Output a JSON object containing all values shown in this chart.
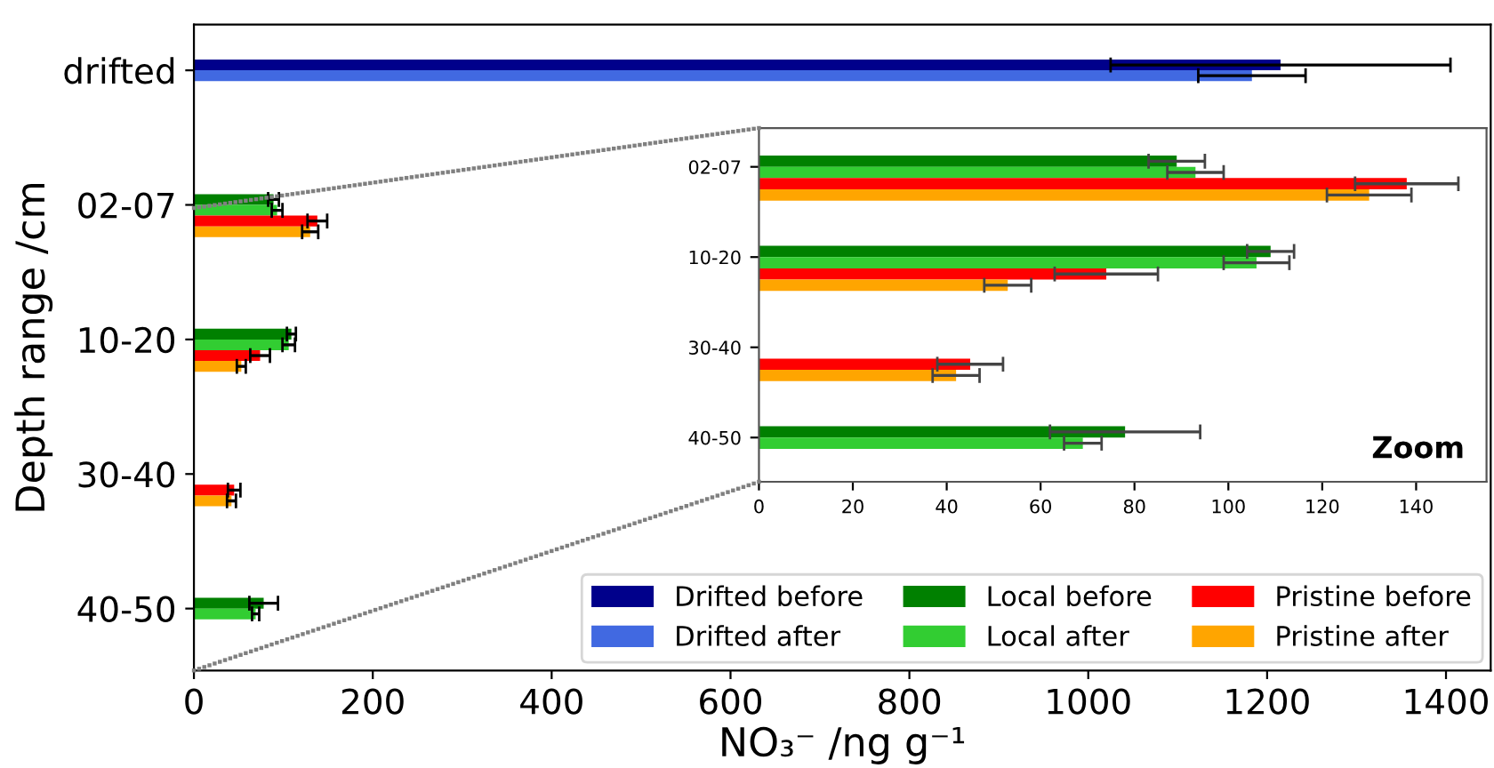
{
  "chart_data": [
    {
      "type": "bar",
      "orientation": "horizontal",
      "categories": [
        "drifted",
        "02-07",
        "10-20",
        "30-40",
        "40-50"
      ],
      "xlabel": "NO₃⁻ /ng g⁻¹",
      "ylabel": "Depth range /cm",
      "xlim": [
        0,
        1450
      ],
      "xticks": [
        0,
        200,
        400,
        600,
        800,
        1000,
        1200,
        1400
      ],
      "legend": "bottom right",
      "series": [
        {
          "name": "Drifted before",
          "color": "#00008b",
          "values": [
            1215,
            null,
            null,
            null,
            null
          ],
          "errors": [
            190,
            null,
            null,
            null,
            null
          ]
        },
        {
          "name": "Drifted after",
          "color": "#4169e1",
          "values": [
            1183,
            null,
            null,
            null,
            null
          ],
          "errors": [
            60,
            null,
            null,
            null,
            null
          ]
        },
        {
          "name": "Local before",
          "color": "#008000",
          "values": [
            null,
            89,
            109,
            null,
            78
          ],
          "errors": [
            null,
            6,
            5,
            null,
            16
          ]
        },
        {
          "name": "Local after",
          "color": "#32cd32",
          "values": [
            null,
            93,
            106,
            null,
            69
          ],
          "errors": [
            null,
            6,
            7,
            null,
            4
          ]
        },
        {
          "name": "Pristine before",
          "color": "#ff0000",
          "values": [
            null,
            138,
            74,
            45,
            null
          ],
          "errors": [
            null,
            11,
            11,
            7,
            null
          ]
        },
        {
          "name": "Pristine after",
          "color": "#ffa500",
          "values": [
            null,
            130,
            53,
            42,
            null
          ],
          "errors": [
            null,
            9,
            5,
            5,
            null
          ]
        }
      ]
    },
    {
      "type": "bar",
      "orientation": "horizontal",
      "categories": [
        "02-07",
        "10-20",
        "30-40",
        "40-50"
      ],
      "xlim": [
        0,
        155
      ],
      "xticks": [
        0,
        20,
        40,
        60,
        80,
        100,
        120,
        140
      ],
      "annotations": [
        "Zoom"
      ],
      "series": [
        {
          "color": "#008000",
          "values": [
            89,
            109,
            null,
            78
          ],
          "errors": [
            6,
            5,
            null,
            16
          ]
        },
        {
          "color": "#32cd32",
          "values": [
            93,
            106,
            null,
            69
          ],
          "errors": [
            6,
            7,
            null,
            4
          ]
        },
        {
          "color": "#ff0000",
          "values": [
            138,
            74,
            45,
            null
          ],
          "errors": [
            11,
            11,
            7,
            null
          ]
        },
        {
          "color": "#ffa500",
          "values": [
            130,
            53,
            42,
            null
          ],
          "errors": [
            9,
            5,
            5,
            null
          ]
        }
      ]
    }
  ]
}
